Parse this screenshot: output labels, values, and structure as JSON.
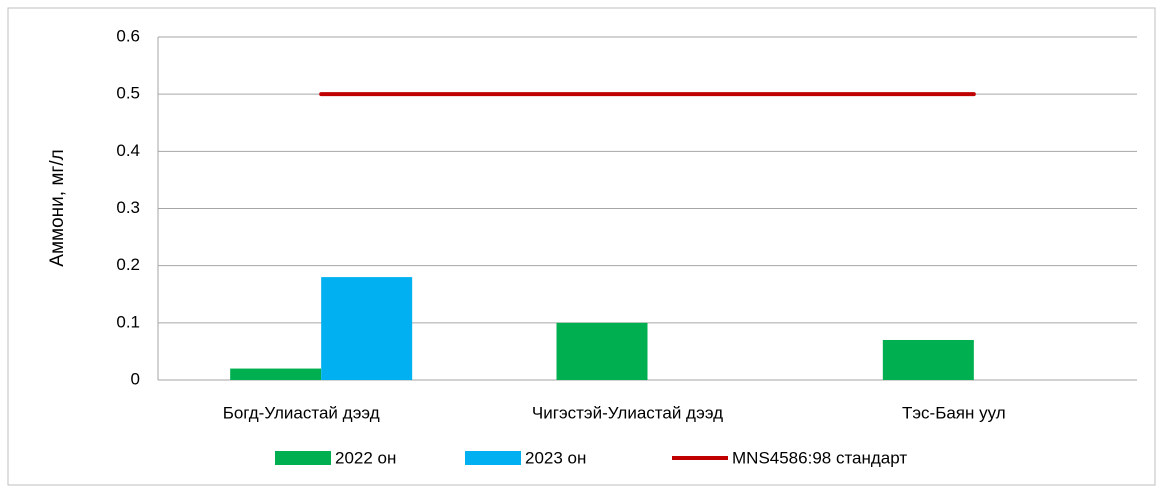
{
  "chart_data": {
    "type": "bar",
    "y_label": "Аммони, мг/л",
    "categories": [
      "Богд-Улиастай дээд",
      "Чигэстэй-Улиастай дээд",
      "Тэс-Баян уул"
    ],
    "series": [
      {
        "name": "2022 он",
        "color": "#00b050",
        "values": [
          0.02,
          0.1,
          0.07
        ]
      },
      {
        "name": "2023 он",
        "color": "#00b0f0",
        "values": [
          0.18,
          null,
          null
        ]
      },
      {
        "name": "MNS4586:98 стандарт",
        "color": "#c00000",
        "type": "line",
        "values": [
          0.5,
          0.5,
          0.5
        ]
      }
    ],
    "ylim": [
      0,
      0.6
    ],
    "yticks": [
      0,
      0.1,
      0.2,
      0.3,
      0.4,
      0.5,
      0.6
    ],
    "grid": true,
    "legend": "bottom"
  }
}
